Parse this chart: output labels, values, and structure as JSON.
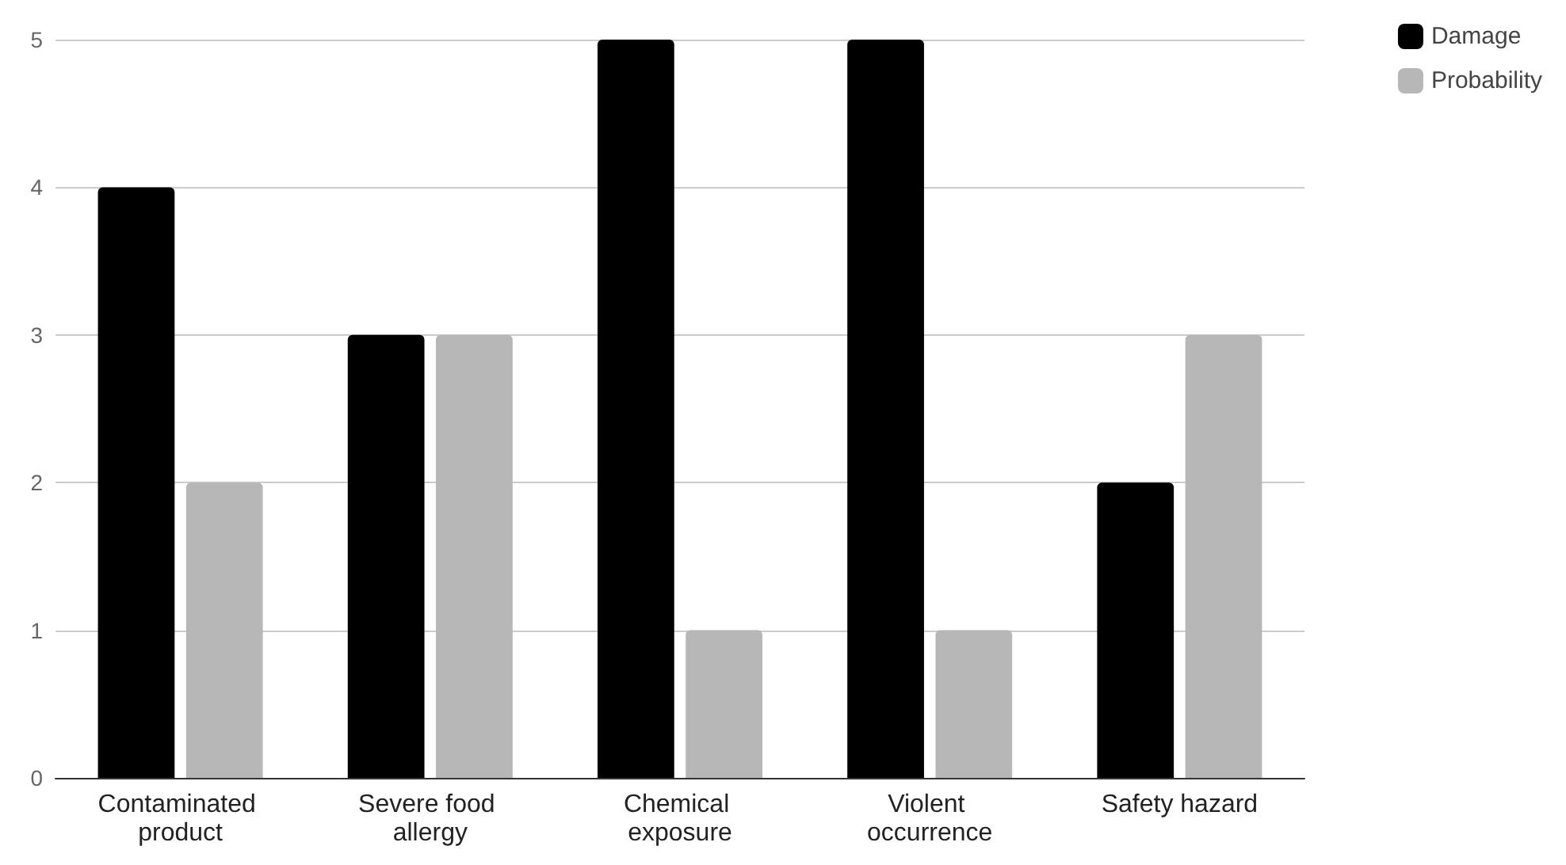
{
  "chart_data": {
    "type": "bar",
    "categories": [
      "Contaminated product",
      "Severe food allergy",
      "Chemical exposure",
      "Violent occurrence",
      "Safety hazard"
    ],
    "series": [
      {
        "name": "Damage",
        "color": "#000000",
        "values": [
          4,
          3,
          5,
          5,
          2
        ]
      },
      {
        "name": "Probability",
        "color": "#b7b7b7",
        "values": [
          2,
          3,
          1,
          1,
          3
        ]
      }
    ],
    "ylim": [
      0,
      5
    ],
    "yticks": [
      0,
      1,
      2,
      3,
      4,
      5
    ],
    "grid": "y",
    "legend": "top right"
  }
}
